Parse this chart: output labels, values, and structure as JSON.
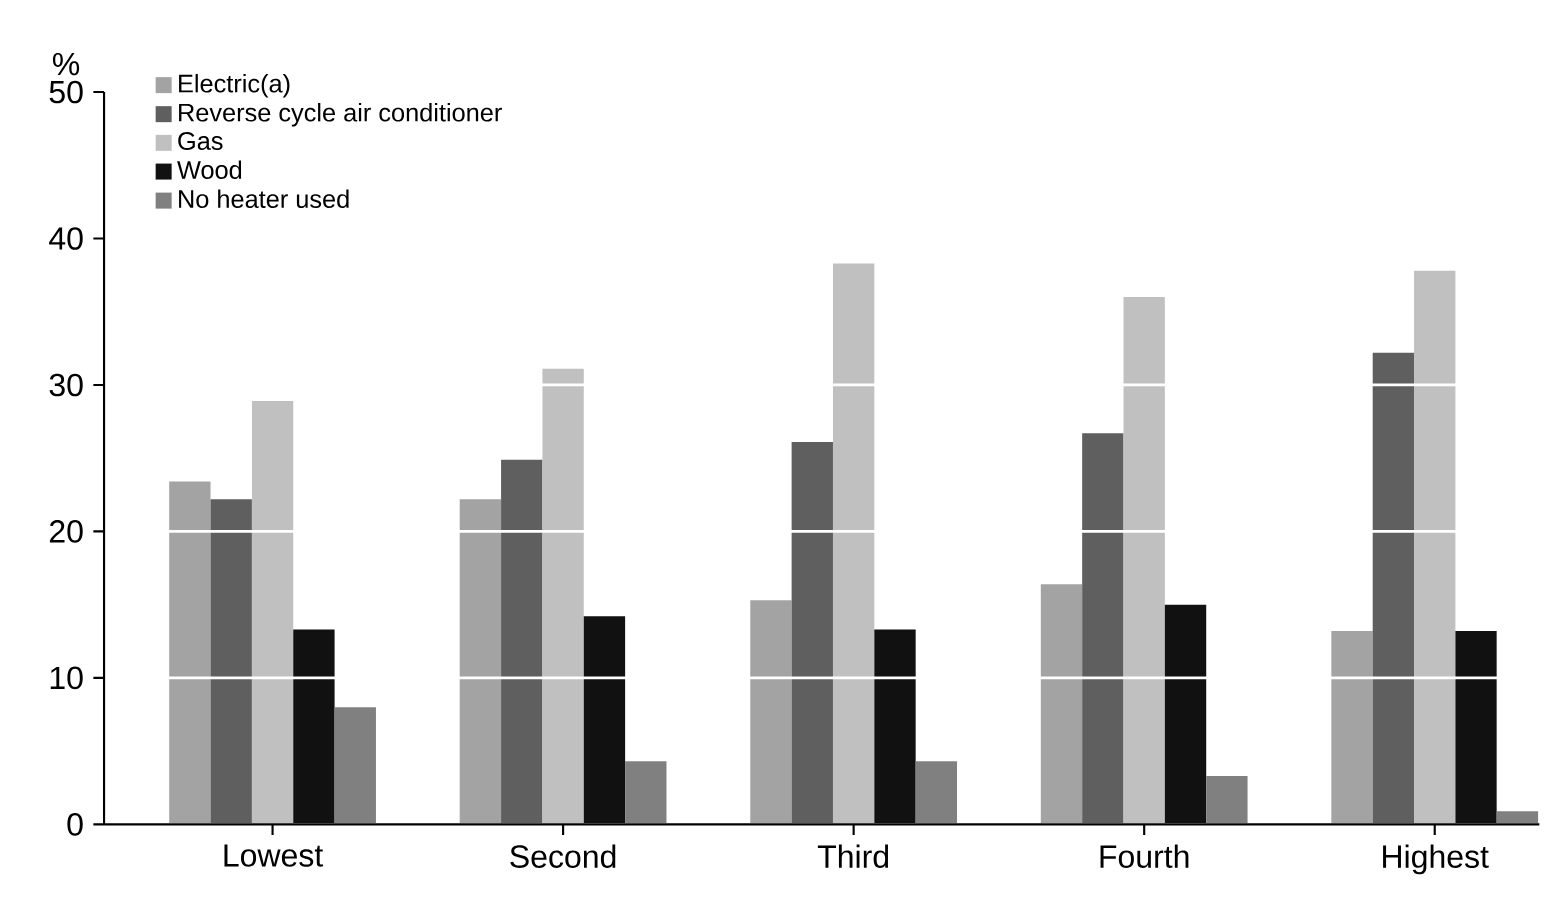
{
  "chart_data": {
    "type": "bar",
    "ylabel": "%",
    "categories": [
      "Lowest",
      "Second",
      "Third",
      "Fourth",
      "Highest"
    ],
    "series": [
      {
        "name": "Electric(a)",
        "color": "#a3a3a3",
        "values": [
          23.4,
          22.2,
          15.3,
          16.4,
          13.2
        ]
      },
      {
        "name": "Reverse cycle air conditioner",
        "color": "#5f5f5f",
        "values": [
          22.2,
          24.9,
          26.1,
          26.7,
          32.2
        ]
      },
      {
        "name": "Gas",
        "color": "#c0c0c0",
        "values": [
          28.9,
          31.1,
          38.3,
          36.0,
          37.8
        ]
      },
      {
        "name": "Wood",
        "color": "#111111",
        "values": [
          13.3,
          14.2,
          13.3,
          15.0,
          13.2
        ]
      },
      {
        "name": "No heater used",
        "color": "#808080",
        "values": [
          8.0,
          4.3,
          4.3,
          3.3,
          0.9
        ]
      }
    ],
    "ylim": [
      0,
      50
    ],
    "yticks": [
      0,
      10,
      20,
      30,
      40,
      50
    ],
    "grid": "y",
    "legend": "top left"
  }
}
